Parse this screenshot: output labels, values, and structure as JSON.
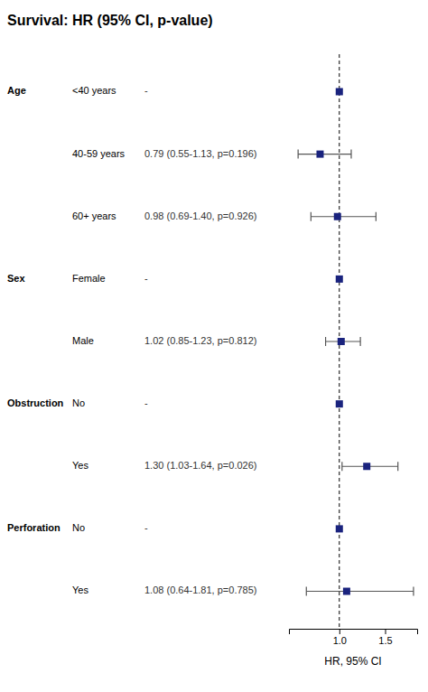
{
  "chart_data": {
    "type": "forest",
    "title": "Survival: HR (95% CI, p-value)",
    "xlabel": "HR, 95% CI",
    "xlim": [
      0.45,
      1.85
    ],
    "xticks": [
      {
        "value": 1.0,
        "label": "1.0"
      },
      {
        "value": 1.5,
        "label": "1.5"
      }
    ],
    "ref_line": 1.0,
    "color": "#1a237e",
    "groups": [
      "Age",
      null,
      null,
      "Sex",
      null,
      "Obstruction",
      null,
      "Perforation",
      null
    ],
    "categories": [
      "<40 years",
      "40-59 years",
      "60+ years",
      "Female",
      "Male",
      "No",
      "Yes",
      "No",
      "Yes"
    ],
    "values": [
      1.0,
      0.79,
      0.98,
      1.0,
      1.02,
      1.0,
      1.3,
      1.0,
      1.08
    ],
    "lower": [
      null,
      0.55,
      0.69,
      null,
      0.85,
      null,
      1.03,
      null,
      0.64
    ],
    "upper": [
      null,
      1.13,
      1.4,
      null,
      1.23,
      null,
      1.64,
      null,
      1.81
    ],
    "value_labels": [
      "-",
      "0.79 (0.55-1.13, p=0.196)",
      "0.98 (0.69-1.40, p=0.926)",
      "-",
      "1.02 (0.85-1.23, p=0.812)",
      "-",
      "1.30 (1.03-1.64, p=0.026)",
      "-",
      "1.08 (0.64-1.81, p=0.785)"
    ]
  }
}
